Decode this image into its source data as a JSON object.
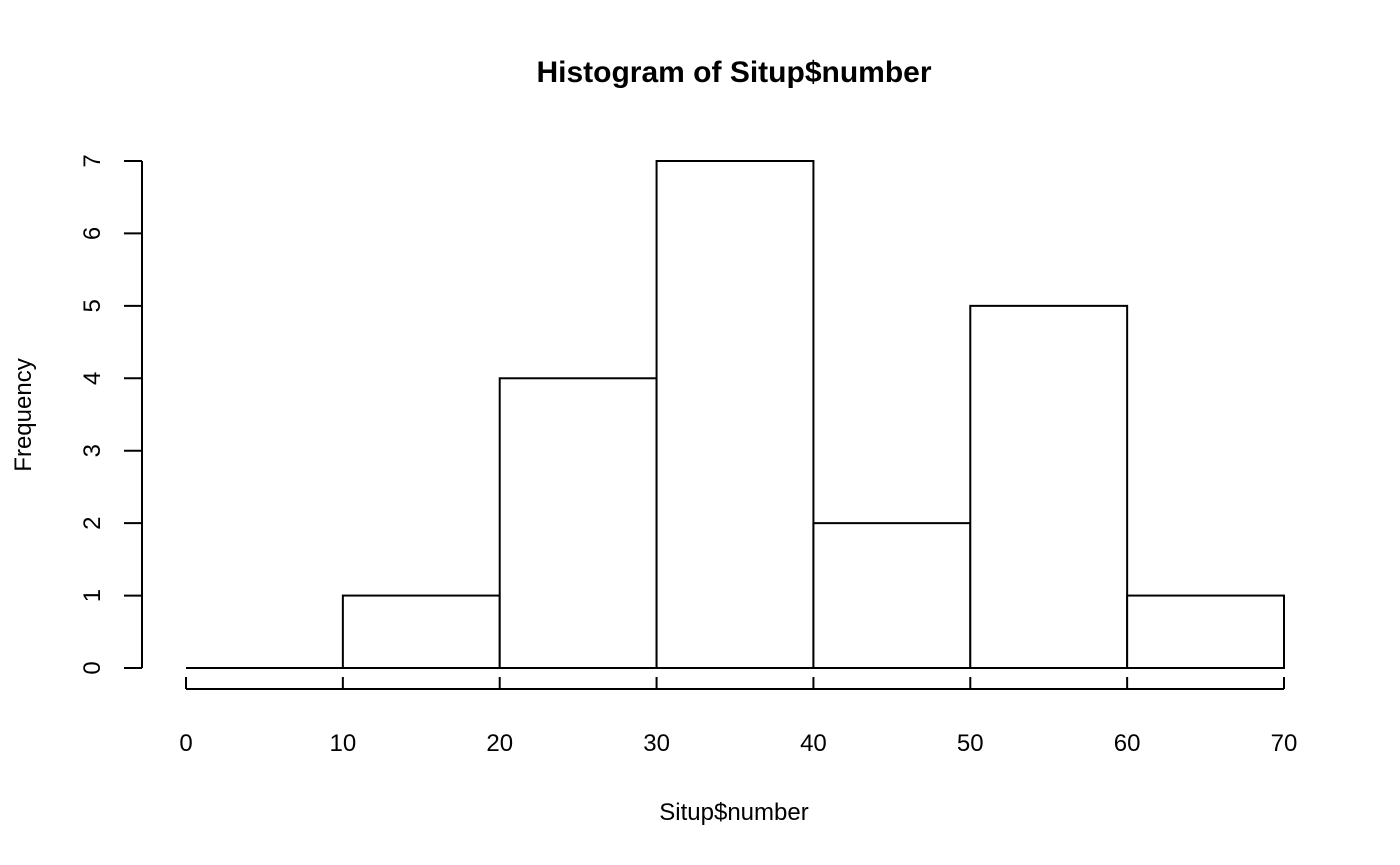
{
  "chart_data": {
    "type": "bar",
    "title": "Histogram of Situp$number",
    "xlabel": "Situp$number",
    "ylabel": "Frequency",
    "bins": [
      {
        "start": 0,
        "end": 10,
        "count": 0
      },
      {
        "start": 10,
        "end": 20,
        "count": 1
      },
      {
        "start": 20,
        "end": 30,
        "count": 4
      },
      {
        "start": 30,
        "end": 40,
        "count": 7
      },
      {
        "start": 40,
        "end": 50,
        "count": 2
      },
      {
        "start": 50,
        "end": 60,
        "count": 5
      },
      {
        "start": 60,
        "end": 70,
        "count": 1
      }
    ],
    "xlim": [
      0,
      70
    ],
    "ylim": [
      0,
      7
    ],
    "x_ticks": [
      "0",
      "10",
      "20",
      "30",
      "40",
      "50",
      "60",
      "70"
    ],
    "y_ticks": [
      "0",
      "1",
      "2",
      "3",
      "4",
      "5",
      "6",
      "7"
    ],
    "grid": false
  }
}
